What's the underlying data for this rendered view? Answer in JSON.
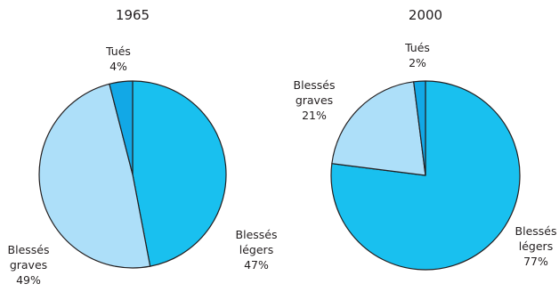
{
  "chart_data": [
    {
      "type": "pie",
      "title": "1965",
      "slices": [
        {
          "label": [
            "Blessés",
            "légers"
          ],
          "value": 47,
          "value_label": "47%",
          "color": "#19c0ef"
        },
        {
          "label": [
            "Blessés",
            "graves"
          ],
          "value": 49,
          "value_label": "49%",
          "color": "#addff9"
        },
        {
          "label": [
            "Tués"
          ],
          "value": 4,
          "value_label": "4%",
          "color": "#12a8e6"
        }
      ]
    },
    {
      "type": "pie",
      "title": "2000",
      "slices": [
        {
          "label": [
            "Blessés",
            "légers"
          ],
          "value": 77,
          "value_label": "77%",
          "color": "#19c0ef"
        },
        {
          "label": [
            "Blessés",
            "graves"
          ],
          "value": 21,
          "value_label": "21%",
          "color": "#addff9"
        },
        {
          "label": [
            "Tués"
          ],
          "value": 2,
          "value_label": "2%",
          "color": "#12a8e6"
        }
      ]
    }
  ],
  "style": {
    "stroke_color": "#231f20"
  }
}
